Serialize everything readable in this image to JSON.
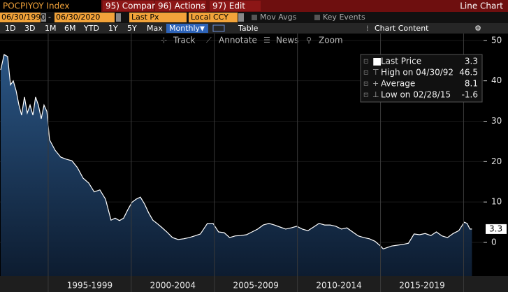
{
  "toolbar": {
    "ticker": "POCPIYOY Index",
    "buttons": [
      "95) Compare",
      "96) Actions",
      "97) Edit"
    ],
    "view": "Line Chart",
    "start_date": "06/30/1990",
    "end_date": "06/30/2020",
    "field": "Last Px",
    "currency": "Local CCY",
    "toggles": [
      "Mov Avgs",
      "Key Events"
    ],
    "ranges": [
      "1D",
      "3D",
      "1M",
      "6M",
      "YTD",
      "1Y",
      "5Y",
      "Max"
    ],
    "frequency": "Monthly",
    "table": "Table",
    "chart_content": "Chart Content",
    "tools": [
      "Track",
      "Annotate",
      "News",
      "Zoom"
    ]
  },
  "chart_data": {
    "type": "line",
    "x": [
      1992.14,
      1992.35,
      1992.56,
      1992.73,
      1992.9,
      1993.07,
      1993.24,
      1993.4,
      1993.57,
      1993.74,
      1993.91,
      1994.08,
      1994.24,
      1994.41,
      1994.58,
      1994.75,
      1994.92,
      1995.08,
      1995.42,
      1995.76,
      1996.09,
      1996.43,
      1996.76,
      1997.1,
      1997.44,
      1997.77,
      1998.11,
      1998.45,
      1998.78,
      1999.03,
      1999.29,
      1999.54,
      1999.79,
      2000.04,
      2000.29,
      2000.55,
      2000.8,
      2001.05,
      2001.3,
      2001.55,
      2001.81,
      2002.14,
      2002.48,
      2002.82,
      2003.15,
      2003.49,
      2003.82,
      2004.16,
      2004.58,
      2004.92,
      2005.25,
      2005.59,
      2005.92,
      2006.26,
      2006.6,
      2006.93,
      2007.27,
      2007.61,
      2007.94,
      2008.28,
      2008.61,
      2008.95,
      2009.29,
      2009.62,
      2009.96,
      2010.29,
      2010.63,
      2010.97,
      2011.3,
      2011.64,
      2011.97,
      2012.31,
      2012.65,
      2012.98,
      2013.32,
      2013.66,
      2013.99,
      2014.33,
      2014.66,
      2015.0,
      2015.16,
      2015.67,
      2016.01,
      2016.34,
      2016.68,
      2017.02,
      2017.35,
      2017.69,
      2018.03,
      2018.36,
      2018.7,
      2019.03,
      2019.37,
      2019.71,
      2020.04,
      2020.21,
      2020.38,
      2020.5
    ],
    "values": [
      42.7,
      46.5,
      46,
      39,
      40,
      37.5,
      34,
      31.5,
      36,
      32,
      34,
      31.5,
      36,
      34,
      30.6,
      34,
      32.4,
      25.4,
      22.8,
      21.1,
      20.6,
      20.2,
      18.5,
      15.9,
      14.7,
      12.5,
      13,
      10.7,
      5.5,
      6,
      5.4,
      6,
      8.1,
      9.9,
      10.7,
      11.2,
      9.5,
      7.3,
      5.5,
      4.7,
      3.8,
      2.6,
      1.2,
      0.7,
      0.9,
      1.2,
      1.6,
      2.1,
      4.7,
      4.7,
      2.6,
      2.4,
      1.2,
      1.6,
      1.7,
      1.9,
      2.6,
      3.3,
      4.3,
      4.7,
      4.3,
      3.8,
      3.3,
      3.6,
      4.0,
      3.3,
      2.9,
      3.8,
      4.7,
      4.3,
      4.3,
      4.0,
      3.3,
      3.6,
      2.6,
      1.6,
      1.2,
      0.9,
      0.3,
      -0.9,
      -1.6,
      -0.9,
      -0.7,
      -0.5,
      -0.2,
      2.1,
      1.9,
      2.2,
      1.7,
      2.6,
      1.6,
      1.2,
      2.2,
      2.9,
      5.0,
      4.7,
      3.3,
      3.3
    ],
    "color": "#ffffff",
    "area_color": "#1f3f66",
    "xlim": [
      1992.1,
      2021.2
    ],
    "xticks": [
      1995,
      2000,
      2005,
      2010,
      2015,
      2020
    ],
    "period_labels": [
      "1995-1999",
      "2000-2004",
      "2005-2009",
      "2010-2014",
      "2015-2019"
    ],
    "ylim": [
      -8.3,
      51.7
    ],
    "yticks": [
      0,
      10,
      20,
      30,
      40,
      50
    ],
    "legend": [
      {
        "label": "Last Price",
        "value": 3.3
      },
      {
        "label": "High on 04/30/92",
        "value": 46.5
      },
      {
        "label": "Average",
        "value": 8.1
      },
      {
        "label": "Low on 02/28/15",
        "value": -1.6
      }
    ]
  }
}
